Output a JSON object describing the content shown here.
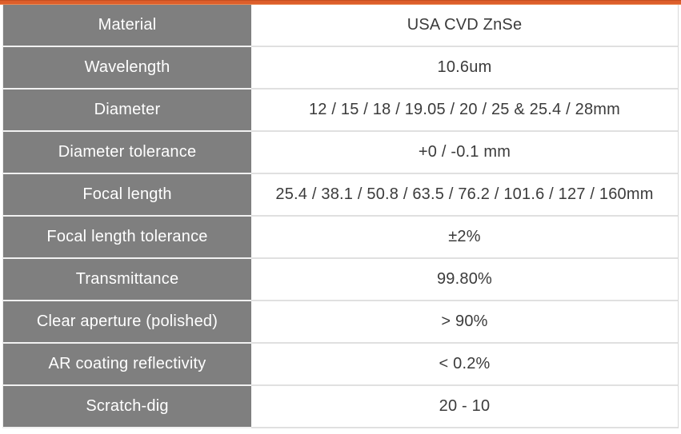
{
  "theme": {
    "accent_orange": "#dd5e2b",
    "header_gray": "#7f7f7f",
    "label_text_color": "#ffffff",
    "value_text_color": "#3b3b3b",
    "separator_color": "#e0e0e0"
  },
  "spec_table": {
    "rows": [
      {
        "label": "Material",
        "value": "USA CVD ZnSe"
      },
      {
        "label": "Wavelength",
        "value": "10.6um"
      },
      {
        "label": "Diameter",
        "value": "12 / 15 / 18 / 19.05 / 20 / 25 & 25.4 / 28mm"
      },
      {
        "label": "Diameter tolerance",
        "value": "+0 / -0.1 mm"
      },
      {
        "label": "Focal length",
        "value": "25.4 / 38.1 / 50.8 / 63.5 / 76.2 / 101.6 / 127 / 160mm"
      },
      {
        "label": "Focal length tolerance",
        "value": "±2%"
      },
      {
        "label": "Transmittance",
        "value": "99.80%"
      },
      {
        "label": "Clear aperture (polished)",
        "value": "> 90%"
      },
      {
        "label": "AR coating reflectivity",
        "value": "< 0.2%"
      },
      {
        "label": "Scratch-dig",
        "value": "20 - 10"
      }
    ]
  }
}
